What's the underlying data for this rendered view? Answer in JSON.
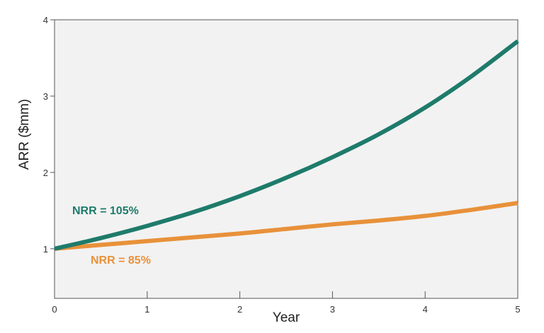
{
  "chart_data": {
    "type": "line",
    "title": "",
    "xlabel": "Year",
    "ylabel": "ARR ($mm)",
    "xlim": [
      0,
      5
    ],
    "ylim": [
      0.35,
      4
    ],
    "xticks": [
      0,
      1,
      2,
      3,
      4,
      5
    ],
    "yticks": [
      1,
      2,
      3,
      4
    ],
    "grid": false,
    "background_color": "#f2f2f2",
    "series": [
      {
        "name": "NRR = 105%",
        "color": "#1e7b6b",
        "x": [
          0,
          0.5,
          1,
          1.5,
          2,
          2.5,
          3,
          3.5,
          4,
          4.5,
          5
        ],
        "y": [
          1.0,
          1.14,
          1.3,
          1.48,
          1.69,
          1.93,
          2.2,
          2.5,
          2.85,
          3.26,
          3.72
        ]
      },
      {
        "name": "NRR = 85%",
        "color": "#e8913a",
        "x": [
          0,
          0.5,
          1,
          1.5,
          2,
          2.5,
          3,
          3.5,
          4,
          4.5,
          5
        ],
        "y": [
          1.0,
          1.05,
          1.1,
          1.15,
          1.2,
          1.26,
          1.32,
          1.37,
          1.43,
          1.51,
          1.6
        ]
      }
    ]
  }
}
